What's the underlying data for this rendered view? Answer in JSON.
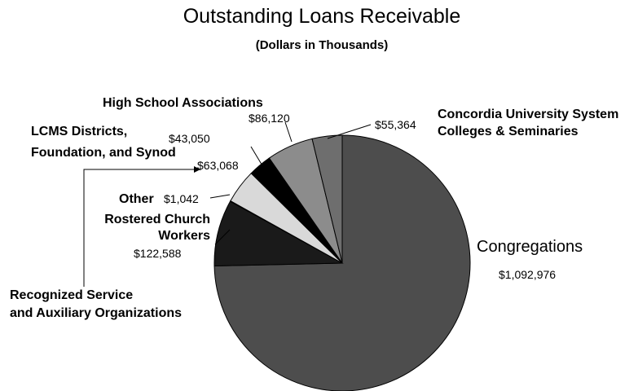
{
  "chart_data": {
    "type": "pie",
    "title": "Outstanding Loans Receivable",
    "subtitle": "(Dollars in Thousands)",
    "slices": [
      {
        "label": "Congregations",
        "value": 1092976,
        "value_label": "$1,092,976",
        "color": "#4d4d4d"
      },
      {
        "label": "Rostered Church Workers",
        "value": 122588,
        "value_label": "$122,588",
        "color": "#1a1a1a"
      },
      {
        "label": "Other",
        "value": 1042,
        "value_label": "$1,042",
        "color": "#ffffff"
      },
      {
        "label": "Recognized Service and Auxiliary Organizations",
        "value": 63068,
        "value_label": "$63,068",
        "color": "#d9d9d9"
      },
      {
        "label": "LCMS Districts, Foundation, and Synod",
        "value": 43050,
        "value_label": "$43,050",
        "color": "#000000"
      },
      {
        "label": "High School Associations",
        "value": 86120,
        "value_label": "$86,120",
        "color": "#8c8c8c"
      },
      {
        "label": "Concordia University System Colleges & Seminaries",
        "value": 55364,
        "value_label": "$55,364",
        "color": "#6e6e6e"
      }
    ]
  },
  "labels": {
    "congregations": "Congregations",
    "rostered_line1": "Rostered Church",
    "rostered_line2": "Workers",
    "other": "Other",
    "recognized_line1": "Recognized Service",
    "recognized_line2": "and Auxiliary Organizations",
    "lcms_line1": "LCMS Districts,",
    "lcms_line2": "Foundation, and Synod",
    "high_school": "High School Associations",
    "concordia_line1": "Concordia University System",
    "concordia_line2": "Colleges & Seminaries"
  }
}
